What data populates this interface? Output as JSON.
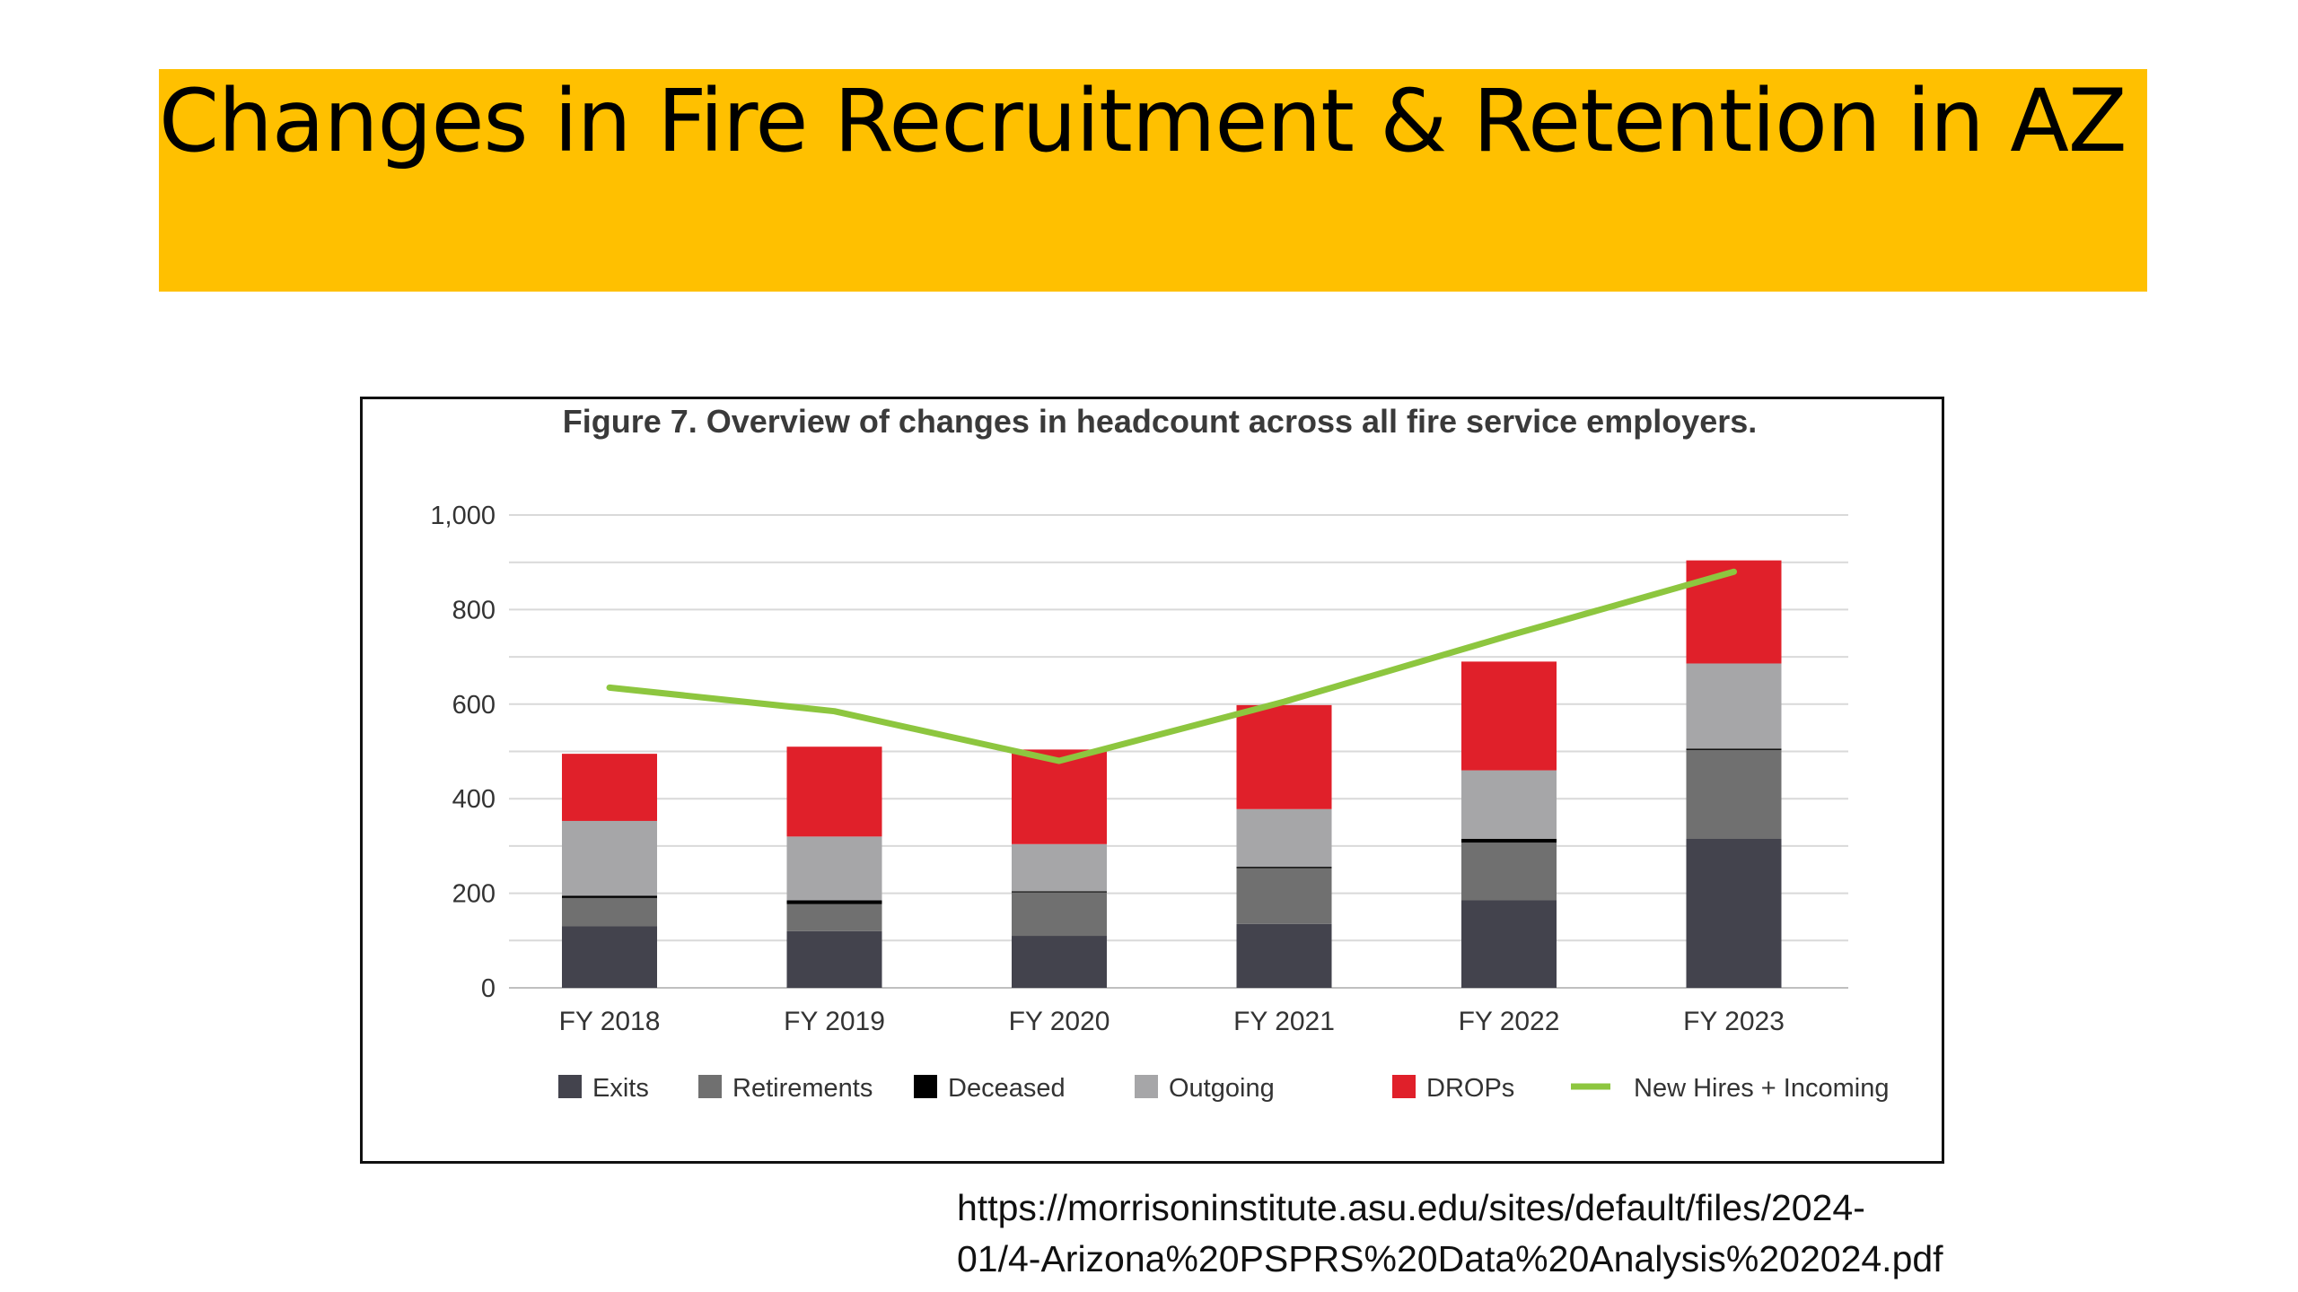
{
  "slide": {
    "title": "Changes in Fire Recruitment & Retention in AZ",
    "source_line1": "https://morrisoninstitute.asu.edu/sites/default/files/2024-",
    "source_line2": "01/4-Arizona%20PSPRS%20Data%20Analysis%202024.pdf"
  },
  "colors": {
    "title_band": "#FFC000",
    "exits": "#43434D",
    "retirements": "#707070",
    "deceased": "#000000",
    "outgoing": "#A6A6A8",
    "drops": "#E0202A",
    "new_hires_line": "#8DC63F",
    "grid": "#D9D9D9"
  },
  "chart_data": {
    "type": "bar",
    "stacked": true,
    "title": "Figure 7. Overview of changes in headcount across all fire service employers.",
    "categories": [
      "FY 2018",
      "FY 2019",
      "FY 2020",
      "FY 2021",
      "FY 2022",
      "FY 2023"
    ],
    "ylim": [
      0,
      1000
    ],
    "yticks": [
      0,
      200,
      400,
      600,
      800,
      1000
    ],
    "ytick_labels": [
      "0",
      "200",
      "400",
      "600",
      "800",
      "1,000"
    ],
    "grid": true,
    "legend_position": "bottom",
    "series": [
      {
        "name": "Exits",
        "kind": "bar",
        "color_key": "exits",
        "values": [
          130,
          120,
          110,
          135,
          185,
          315
        ]
      },
      {
        "name": "Retirements",
        "kind": "bar",
        "color_key": "retirements",
        "values": [
          60,
          57,
          92,
          118,
          122,
          188
        ]
      },
      {
        "name": "Deceased",
        "kind": "bar",
        "color_key": "deceased",
        "values": [
          5,
          8,
          2,
          3,
          8,
          3
        ]
      },
      {
        "name": "Outgoing",
        "kind": "bar",
        "color_key": "outgoing",
        "values": [
          158,
          135,
          100,
          122,
          145,
          180
        ]
      },
      {
        "name": "DROPs",
        "kind": "bar",
        "color_key": "drops",
        "values": [
          142,
          190,
          200,
          220,
          230,
          218
        ]
      },
      {
        "name": "New Hires + Incoming",
        "kind": "line",
        "color_key": "new_hires_line",
        "values": [
          635,
          585,
          480,
          605,
          745,
          880
        ]
      }
    ]
  }
}
